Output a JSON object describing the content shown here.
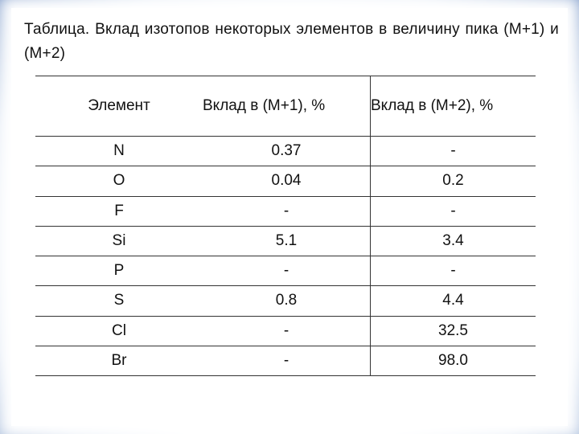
{
  "title": "Таблица. Вклад изотопов некоторых элементов в величину пика (М+1) и (М+2)",
  "table": {
    "headers": [
      "Элемент",
      "Вклад в (М+1), %",
      "Вклад в (М+2), %"
    ],
    "rows": [
      [
        "N",
        "0.37",
        "-"
      ],
      [
        "O",
        "0.04",
        "0.2"
      ],
      [
        "F",
        "-",
        "-"
      ],
      [
        "Si",
        "5.1",
        "3.4"
      ],
      [
        "P",
        "-",
        "-"
      ],
      [
        "S",
        "0.8",
        "4.4"
      ],
      [
        "Cl",
        "-",
        "32.5"
      ],
      [
        "Br",
        "-",
        "98.0"
      ]
    ]
  }
}
